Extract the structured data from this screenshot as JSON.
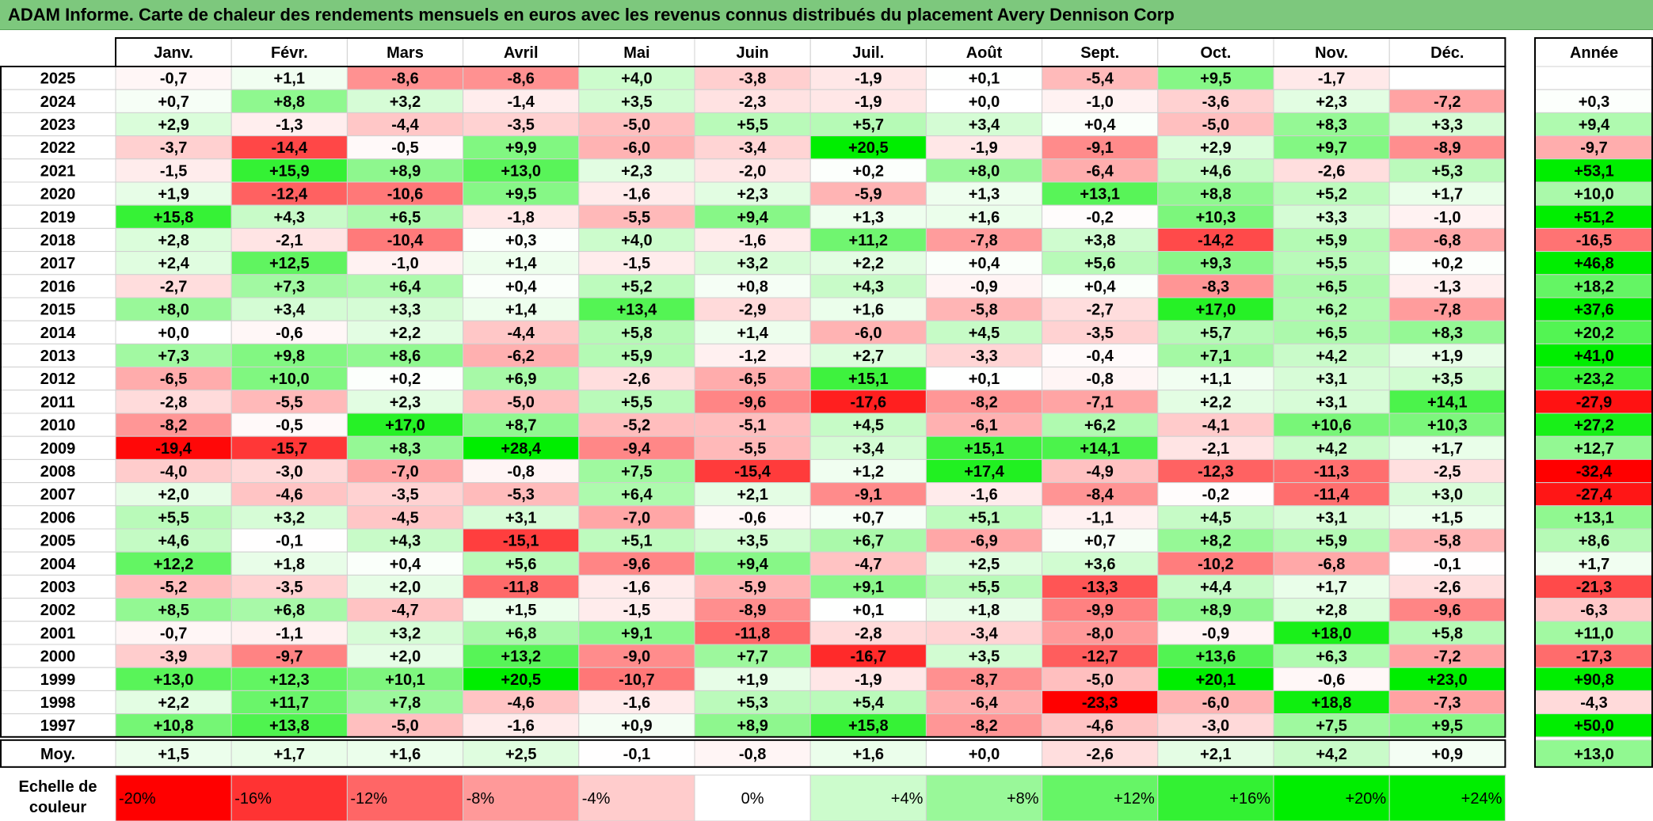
{
  "title": "ADAM Informe. Carte de chaleur des rendements mensuels en euros avec les revenus connus distribués du placement Avery Dennison Corp",
  "colors": {
    "negative": "#ff0000",
    "zero": "#ffffff",
    "positive": "#00ee00",
    "title_bg": "#7dc87d"
  },
  "chart_data": {
    "type": "heatmap",
    "title": "ADAM Informe. Carte de chaleur des rendements mensuels en euros avec les revenus connus distribués du placement Avery Dennison Corp",
    "months": [
      "Janv.",
      "Févr.",
      "Mars",
      "Avril",
      "Mai",
      "Juin",
      "Juil.",
      "Août",
      "Sept.",
      "Oct.",
      "Nov.",
      "Déc."
    ],
    "year_header": "Année",
    "avg_label": "Moy.",
    "scale_label": [
      "Echelle de",
      "couleur"
    ],
    "rows": [
      {
        "year": "2025",
        "values": [
          "-0,7",
          "+1,1",
          "-8,6",
          "-8,6",
          "+4,0",
          "-3,8",
          "-1,9",
          "+0,1",
          "-5,4",
          "+9,5",
          "-1,7",
          ""
        ],
        "annual": ""
      },
      {
        "year": "2024",
        "values": [
          "+0,7",
          "+8,8",
          "+3,2",
          "-1,4",
          "+3,5",
          "-2,3",
          "-1,9",
          "+0,0",
          "-1,0",
          "-3,6",
          "+2,3",
          "-7,2"
        ],
        "annual": "+0,3"
      },
      {
        "year": "2023",
        "values": [
          "+2,9",
          "-1,3",
          "-4,4",
          "-3,5",
          "-5,0",
          "+5,5",
          "+5,7",
          "+3,4",
          "+0,4",
          "-5,0",
          "+8,3",
          "+3,3"
        ],
        "annual": "+9,4"
      },
      {
        "year": "2022",
        "values": [
          "-3,7",
          "-14,4",
          "-0,5",
          "+9,9",
          "-6,0",
          "-3,4",
          "+20,5",
          "-1,9",
          "-9,1",
          "+2,9",
          "+9,7",
          "-8,9"
        ],
        "annual": "-9,7"
      },
      {
        "year": "2021",
        "values": [
          "-1,5",
          "+15,9",
          "+8,9",
          "+13,0",
          "+2,3",
          "-2,0",
          "+0,2",
          "+8,0",
          "-6,4",
          "+4,6",
          "-2,6",
          "+5,3"
        ],
        "annual": "+53,1"
      },
      {
        "year": "2020",
        "values": [
          "+1,9",
          "-12,4",
          "-10,6",
          "+9,5",
          "-1,6",
          "+2,3",
          "-5,9",
          "+1,3",
          "+13,1",
          "+8,8",
          "+5,2",
          "+1,7"
        ],
        "annual": "+10,0"
      },
      {
        "year": "2019",
        "values": [
          "+15,8",
          "+4,3",
          "+6,5",
          "-1,8",
          "-5,5",
          "+9,4",
          "+1,3",
          "+1,6",
          "-0,2",
          "+10,3",
          "+3,3",
          "-1,0"
        ],
        "annual": "+51,2"
      },
      {
        "year": "2018",
        "values": [
          "+2,8",
          "-2,1",
          "-10,4",
          "+0,3",
          "+4,0",
          "-1,6",
          "+11,2",
          "-7,8",
          "+3,8",
          "-14,2",
          "+5,9",
          "-6,8"
        ],
        "annual": "-16,5"
      },
      {
        "year": "2017",
        "values": [
          "+2,4",
          "+12,5",
          "-1,0",
          "+1,4",
          "-1,5",
          "+3,2",
          "+2,2",
          "+0,4",
          "+5,6",
          "+9,3",
          "+5,5",
          "+0,2"
        ],
        "annual": "+46,8"
      },
      {
        "year": "2016",
        "values": [
          "-2,7",
          "+7,3",
          "+6,4",
          "+0,4",
          "+5,2",
          "+0,8",
          "+4,3",
          "-0,9",
          "+0,4",
          "-8,3",
          "+6,5",
          "-1,3"
        ],
        "annual": "+18,2"
      },
      {
        "year": "2015",
        "values": [
          "+8,0",
          "+3,4",
          "+3,3",
          "+1,4",
          "+13,4",
          "-2,9",
          "+1,6",
          "-5,8",
          "-2,7",
          "+17,0",
          "+6,2",
          "-7,8"
        ],
        "annual": "+37,6"
      },
      {
        "year": "2014",
        "values": [
          "+0,0",
          "-0,6",
          "+2,2",
          "-4,4",
          "+5,8",
          "+1,4",
          "-6,0",
          "+4,5",
          "-3,5",
          "+5,7",
          "+6,5",
          "+8,3"
        ],
        "annual": "+20,2"
      },
      {
        "year": "2013",
        "values": [
          "+7,3",
          "+9,8",
          "+8,6",
          "-6,2",
          "+5,9",
          "-1,2",
          "+2,7",
          "-3,3",
          "-0,4",
          "+7,1",
          "+4,2",
          "+1,9"
        ],
        "annual": "+41,0"
      },
      {
        "year": "2012",
        "values": [
          "-6,5",
          "+10,0",
          "+0,2",
          "+6,9",
          "-2,6",
          "-6,5",
          "+15,1",
          "+0,1",
          "-0,8",
          "+1,1",
          "+3,1",
          "+3,5"
        ],
        "annual": "+23,2"
      },
      {
        "year": "2011",
        "values": [
          "-2,8",
          "-5,5",
          "+2,3",
          "-5,0",
          "+5,5",
          "-9,6",
          "-17,6",
          "-8,2",
          "-7,1",
          "+2,2",
          "+3,1",
          "+14,1"
        ],
        "annual": "-27,9"
      },
      {
        "year": "2010",
        "values": [
          "-8,2",
          "-0,5",
          "+17,0",
          "+8,7",
          "-5,2",
          "-5,1",
          "+4,5",
          "-6,1",
          "+6,2",
          "-4,1",
          "+10,6",
          "+10,3"
        ],
        "annual": "+27,2"
      },
      {
        "year": "2009",
        "values": [
          "-19,4",
          "-15,7",
          "+8,3",
          "+28,4",
          "-9,4",
          "-5,5",
          "+3,4",
          "+15,1",
          "+14,1",
          "-2,1",
          "+4,2",
          "+1,7"
        ],
        "annual": "+12,7"
      },
      {
        "year": "2008",
        "values": [
          "-4,0",
          "-3,0",
          "-7,0",
          "-0,8",
          "+7,5",
          "-15,4",
          "+1,2",
          "+17,4",
          "-4,9",
          "-12,3",
          "-11,3",
          "-2,5"
        ],
        "annual": "-32,4"
      },
      {
        "year": "2007",
        "values": [
          "+2,0",
          "-4,6",
          "-3,5",
          "-5,3",
          "+6,4",
          "+2,1",
          "-9,1",
          "-1,6",
          "-8,4",
          "-0,2",
          "-11,4",
          "+3,0"
        ],
        "annual": "-27,4"
      },
      {
        "year": "2006",
        "values": [
          "+5,5",
          "+3,2",
          "-4,5",
          "+3,1",
          "-7,0",
          "-0,6",
          "+0,7",
          "+5,1",
          "-1,1",
          "+4,5",
          "+3,1",
          "+1,5"
        ],
        "annual": "+13,1"
      },
      {
        "year": "2005",
        "values": [
          "+4,6",
          "-0,1",
          "+4,3",
          "-15,1",
          "+5,1",
          "+3,5",
          "+6,7",
          "-6,9",
          "+0,7",
          "+8,2",
          "+5,9",
          "-5,8"
        ],
        "annual": "+8,6"
      },
      {
        "year": "2004",
        "values": [
          "+12,2",
          "+1,8",
          "+0,4",
          "+5,6",
          "-9,6",
          "+9,4",
          "-4,7",
          "+2,5",
          "+3,6",
          "-10,2",
          "-6,8",
          "-0,1"
        ],
        "annual": "+1,7"
      },
      {
        "year": "2003",
        "values": [
          "-5,2",
          "-3,5",
          "+2,0",
          "-11,8",
          "-1,6",
          "-5,9",
          "+9,1",
          "+5,5",
          "-13,3",
          "+4,4",
          "+1,7",
          "-2,6"
        ],
        "annual": "-21,3"
      },
      {
        "year": "2002",
        "values": [
          "+8,5",
          "+6,8",
          "-4,7",
          "+1,5",
          "-1,5",
          "-8,9",
          "+0,1",
          "+1,8",
          "-9,9",
          "+8,9",
          "+2,8",
          "-9,6"
        ],
        "annual": "-6,3"
      },
      {
        "year": "2001",
        "values": [
          "-0,7",
          "-1,1",
          "+3,2",
          "+6,8",
          "+9,1",
          "-11,8",
          "-2,8",
          "-3,4",
          "-8,0",
          "-0,9",
          "+18,0",
          "+5,8"
        ],
        "annual": "+11,0"
      },
      {
        "year": "2000",
        "values": [
          "-3,9",
          "-9,7",
          "+2,0",
          "+13,2",
          "-9,0",
          "+7,7",
          "-16,7",
          "+3,5",
          "-12,7",
          "+13,6",
          "+6,3",
          "-7,2"
        ],
        "annual": "-17,3"
      },
      {
        "year": "1999",
        "values": [
          "+13,0",
          "+12,3",
          "+10,1",
          "+20,5",
          "-10,7",
          "+1,9",
          "-1,9",
          "-8,7",
          "-5,0",
          "+20,1",
          "-0,6",
          "+23,0"
        ],
        "annual": "+90,8"
      },
      {
        "year": "1998",
        "values": [
          "+2,2",
          "+11,7",
          "+7,8",
          "-4,6",
          "-1,6",
          "+5,3",
          "+5,4",
          "-6,4",
          "-23,3",
          "-6,0",
          "+18,8",
          "-7,3"
        ],
        "annual": "-4,3"
      },
      {
        "year": "1997",
        "values": [
          "+10,8",
          "+13,8",
          "-5,0",
          "-1,6",
          "+0,9",
          "+8,9",
          "+15,8",
          "-8,2",
          "-4,6",
          "-3,0",
          "+7,5",
          "+9,5"
        ],
        "annual": "+50,0"
      }
    ],
    "averages": [
      "+1,5",
      "+1,7",
      "+1,6",
      "+2,5",
      "-0,1",
      "-0,8",
      "+1,6",
      "+0,0",
      "-2,6",
      "+2,1",
      "+4,2",
      "+0,9"
    ],
    "annual_average": "+13,0",
    "scale": [
      "-20%",
      "-16%",
      "-12%",
      "-8%",
      "-4%",
      "0%",
      "+4%",
      "+8%",
      "+12%",
      "+16%",
      "+20%",
      "+24%"
    ],
    "scale_values": [
      -20,
      -16,
      -12,
      -8,
      -4,
      0,
      4,
      8,
      12,
      16,
      20,
      24
    ]
  }
}
